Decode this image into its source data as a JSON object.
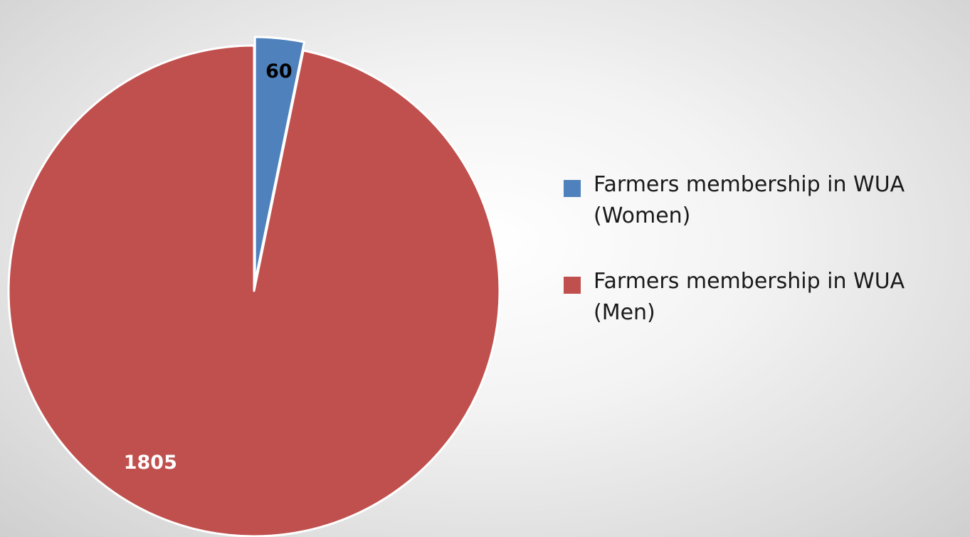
{
  "chart_data": {
    "type": "pie",
    "title": "",
    "slices": [
      {
        "name": "Farmers membership in WUA (Women)",
        "value": 60,
        "color": "#4f81bd",
        "exploded": true,
        "label_color": "#000000"
      },
      {
        "name": "Farmers membership in WUA (Men)",
        "value": 1805,
        "color": "#c0504d",
        "exploded": false,
        "label_color": "#ffffff"
      }
    ],
    "legend_placement": "right",
    "data_labels": true
  }
}
